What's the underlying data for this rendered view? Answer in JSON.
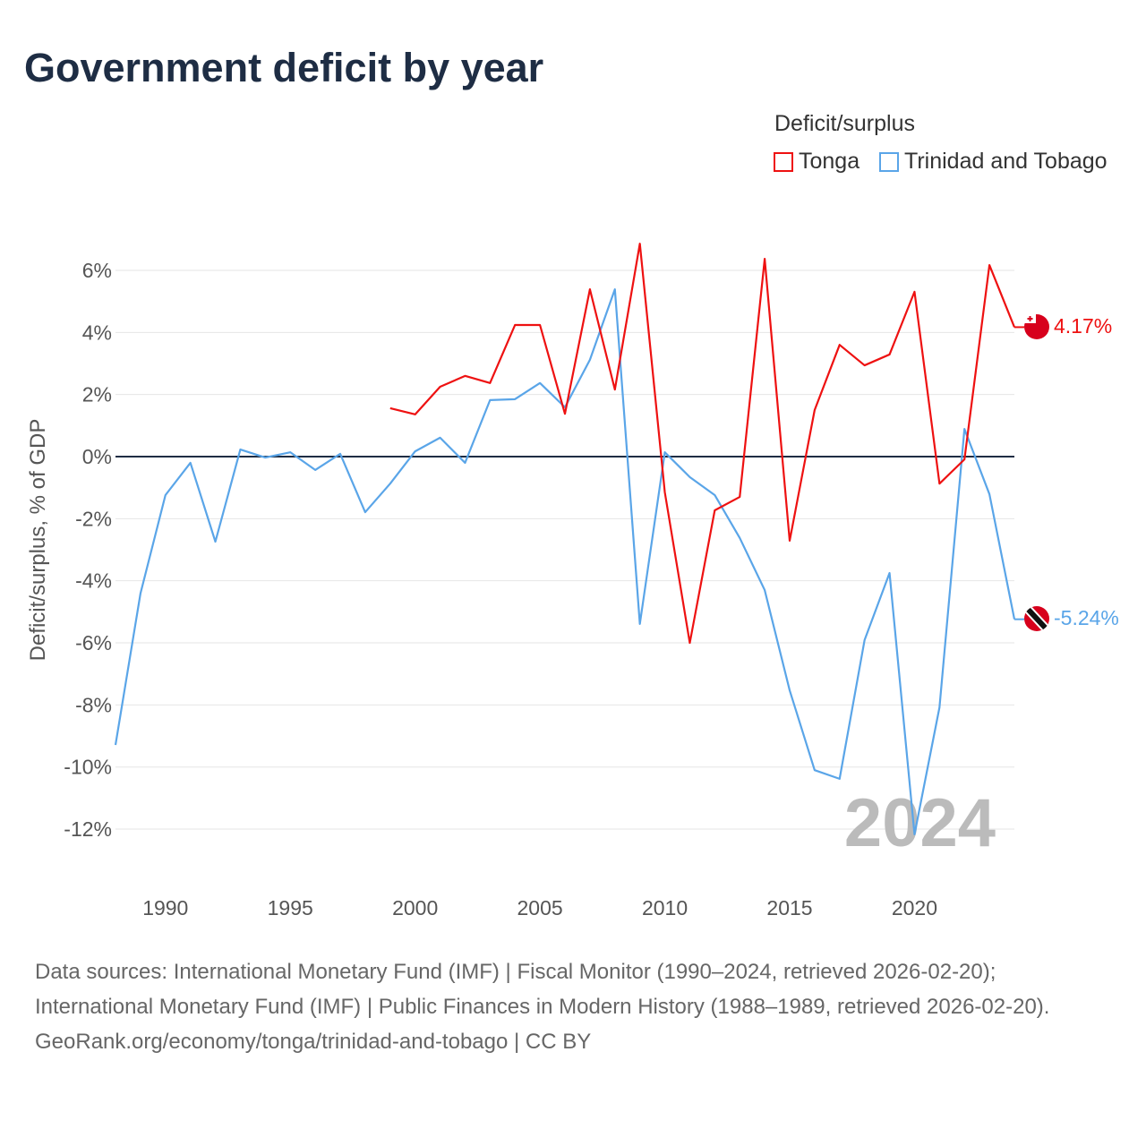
{
  "title": "Government deficit by year",
  "legend": {
    "title": "Deficit/surplus",
    "items": [
      {
        "label": "Tonga",
        "color": "#ee1111"
      },
      {
        "label": "Trinidad and Tobago",
        "color": "#5aa5e8"
      }
    ]
  },
  "year_watermark": "2024",
  "end_labels": {
    "tonga": "4.17%",
    "tt": "-5.24%"
  },
  "footer": {
    "sources": "Data sources: International Monetary Fund (IMF) | Fiscal Monitor (1990–2024, retrieved 2026-02-20); International Monetary Fund (IMF) | Public Finances in Modern History (1988–1989, retrieved 2026-02-20).",
    "credit": "GeoRank.org/economy/tonga/trinidad-and-tobago | CC BY"
  },
  "chart_data": {
    "type": "line",
    "title": "Government deficit by year",
    "xlabel": "",
    "ylabel": "Deficit/surplus, % of GDP",
    "xlim": [
      1988,
      2024
    ],
    "ylim": [
      -13,
      7
    ],
    "xticks": [
      1990,
      1995,
      2000,
      2005,
      2010,
      2015,
      2020
    ],
    "yticks": [
      6,
      4,
      2,
      0,
      -2,
      -4,
      -6,
      -8,
      -10,
      -12
    ],
    "ytick_labels": [
      "6%",
      "4%",
      "2%",
      "0%",
      "-2%",
      "-4%",
      "-6%",
      "-8%",
      "-10%",
      "-12%"
    ],
    "grid": true,
    "legend_position": "top-right",
    "series": [
      {
        "name": "Tonga",
        "color": "#ee1111",
        "x": [
          1999,
          2000,
          2001,
          2002,
          2003,
          2004,
          2005,
          2006,
          2007,
          2008,
          2009,
          2010,
          2011,
          2012,
          2013,
          2014,
          2015,
          2016,
          2017,
          2018,
          2019,
          2020,
          2021,
          2022,
          2023,
          2024
        ],
        "values": [
          1.56,
          1.36,
          2.25,
          2.6,
          2.37,
          4.24,
          4.24,
          1.38,
          5.39,
          2.16,
          6.86,
          -1.15,
          -6.0,
          -1.73,
          -1.3,
          6.37,
          -2.71,
          1.5,
          3.6,
          2.94,
          3.29,
          5.31,
          -0.87,
          -0.09,
          6.17,
          4.17
        ]
      },
      {
        "name": "Trinidad and Tobago",
        "color": "#5aa5e8",
        "x": [
          1988,
          1989,
          1990,
          1991,
          1992,
          1993,
          1994,
          1995,
          1996,
          1997,
          1998,
          1999,
          2000,
          2001,
          2002,
          2003,
          2004,
          2005,
          2006,
          2007,
          2008,
          2009,
          2010,
          2011,
          2012,
          2013,
          2014,
          2015,
          2016,
          2017,
          2018,
          2019,
          2020,
          2021,
          2022,
          2023,
          2024
        ],
        "values": [
          -9.29,
          -4.41,
          -1.24,
          -0.2,
          -2.74,
          0.23,
          -0.03,
          0.14,
          -0.43,
          0.09,
          -1.79,
          -0.87,
          0.17,
          0.61,
          -0.2,
          1.82,
          1.85,
          2.37,
          1.59,
          3.12,
          5.39,
          -5.39,
          0.14,
          -0.66,
          -1.24,
          -2.62,
          -4.3,
          -7.53,
          -10.1,
          -10.38,
          -5.91,
          -3.75,
          -12.17,
          -8.08,
          0.89,
          -1.21,
          -5.24
        ]
      }
    ]
  }
}
